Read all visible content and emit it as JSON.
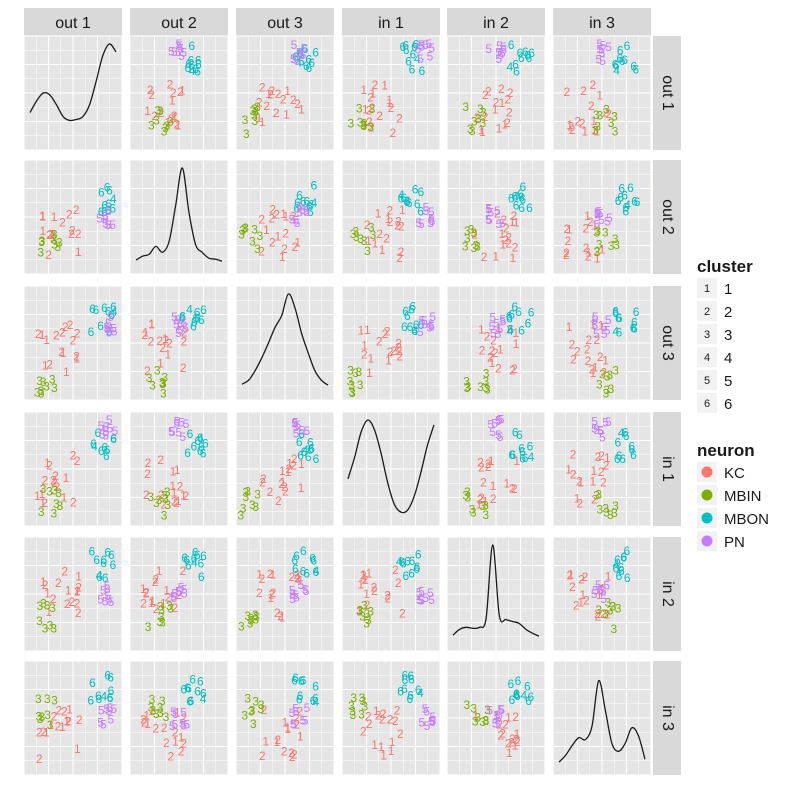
{
  "chart_data": {
    "type": "scatter",
    "title": "",
    "variables": [
      "out 1",
      "out 2",
      "out 3",
      "in 1",
      "in 2",
      "in 3"
    ],
    "layout": "pairs-matrix",
    "diagonal": "density",
    "off_diagonal": "scatter-text-labels",
    "grid": true,
    "background": "#E5E5E5",
    "strip_fill": "#D9D9D9",
    "legend_position": "right",
    "legend": {
      "cluster": {
        "title": "cluster",
        "labels": [
          "1",
          "2",
          "3",
          "4",
          "5",
          "6"
        ]
      },
      "neuron": {
        "title": "neuron",
        "labels": [
          "KC",
          "MBIN",
          "MBON",
          "PN"
        ],
        "colors": [
          "#F8766D",
          "#7CAE00",
          "#00BFC4",
          "#C77CFF"
        ]
      }
    },
    "density_curves": {
      "out 1": [
        0.3,
        0.42,
        0.5,
        0.48,
        0.38,
        0.26,
        0.22,
        0.23,
        0.26,
        0.38,
        0.62,
        0.88,
        1.0,
        0.92
      ],
      "out 2": [
        0.06,
        0.1,
        0.12,
        0.2,
        0.14,
        0.25,
        0.62,
        1.0,
        0.55,
        0.22,
        0.14,
        0.08,
        0.07,
        0.05
      ],
      "out 3": [
        0.08,
        0.12,
        0.22,
        0.35,
        0.5,
        0.66,
        0.78,
        1.0,
        0.86,
        0.6,
        0.4,
        0.22,
        0.12,
        0.07
      ],
      "in 1": [
        0.4,
        0.62,
        0.88,
        1.0,
        0.9,
        0.66,
        0.36,
        0.14,
        0.06,
        0.08,
        0.22,
        0.46,
        0.74,
        0.95
      ],
      "in 2": [
        0.08,
        0.14,
        0.16,
        0.15,
        0.16,
        0.25,
        1.0,
        0.28,
        0.24,
        0.22,
        0.2,
        0.14,
        0.1,
        0.07
      ],
      "in 3": [
        0.05,
        0.12,
        0.22,
        0.3,
        0.28,
        0.42,
        0.88,
        0.58,
        0.24,
        0.16,
        0.24,
        0.4,
        0.32,
        0.08
      ]
    },
    "clusters_by_neuron": {
      "KC": [
        "1",
        "2"
      ],
      "MBIN": [
        "3"
      ],
      "MBON": [
        "6",
        "4"
      ],
      "PN": [
        "5"
      ]
    },
    "point_label_sample": {
      "KC": [
        "2",
        "2",
        "1",
        "2",
        "2",
        "1",
        "2",
        "1",
        "2",
        "2",
        "1",
        "2",
        "2",
        "1",
        "2",
        "1"
      ],
      "MBIN": [
        "3",
        "3",
        "3",
        "3",
        "3",
        "3",
        "3",
        "3"
      ],
      "MBON": [
        "6",
        "6",
        "6",
        "6",
        "6",
        "4",
        "6",
        "6",
        "6",
        "6"
      ],
      "PN": [
        "5",
        "5",
        "5",
        "5",
        "5",
        "5",
        "5",
        "5"
      ]
    },
    "neuron_centroids": {
      "KC": [
        0.35,
        0.35,
        0.45,
        0.4,
        0.5,
        0.35
      ],
      "MBIN": [
        0.25,
        0.3,
        0.15,
        0.2,
        0.3,
        0.55
      ],
      "MBON": [
        0.8,
        0.65,
        0.7,
        0.7,
        0.75,
        0.75
      ],
      "PN": [
        0.85,
        0.5,
        0.65,
        0.85,
        0.5,
        0.5
      ]
    }
  }
}
